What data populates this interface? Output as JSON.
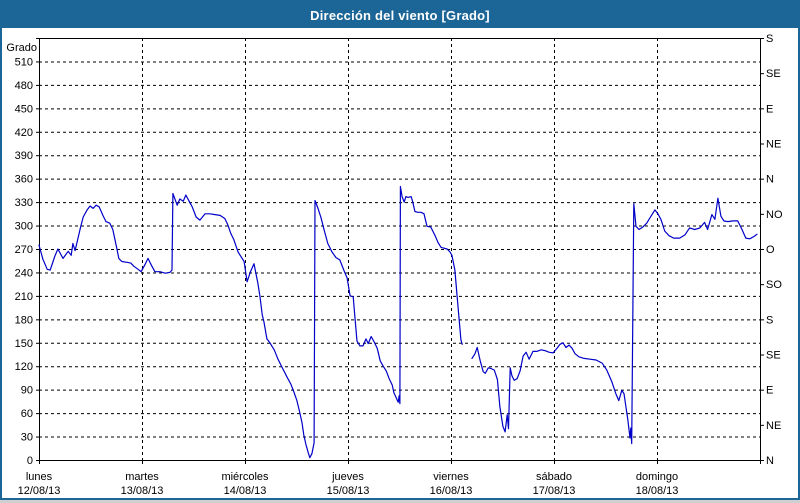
{
  "window": {
    "title": "Dirección del viento [Grado]"
  },
  "colors": {
    "titlebar_bg": "#1c6697",
    "frame_border": "#1c6697",
    "plot_border": "#000000",
    "grid": "#000000",
    "text": "#000000",
    "line": "#0000c8",
    "background": "#ffffff"
  },
  "chart_data": {
    "type": "line",
    "title": "Dirección del viento [Grado]",
    "grid": "dashed",
    "legend": "none",
    "y_axis_left": {
      "label": "Grado",
      "min": 0,
      "max": 540,
      "tick_step": 30,
      "tick_labels": [
        "0",
        "30",
        "60",
        "90",
        "120",
        "150",
        "180",
        "210",
        "240",
        "270",
        "300",
        "330",
        "360",
        "390",
        "420",
        "450",
        "480",
        "510"
      ]
    },
    "y_axis_right": {
      "labels": [
        {
          "value": 540,
          "text": "S"
        },
        {
          "value": 495,
          "text": "SE"
        },
        {
          "value": 450,
          "text": "E"
        },
        {
          "value": 405,
          "text": "NE"
        },
        {
          "value": 360,
          "text": "N"
        },
        {
          "value": 315,
          "text": "NO"
        },
        {
          "value": 270,
          "text": "O"
        },
        {
          "value": 225,
          "text": "SO"
        },
        {
          "value": 180,
          "text": "S"
        },
        {
          "value": 135,
          "text": "SE"
        },
        {
          "value": 90,
          "text": "E"
        },
        {
          "value": 45,
          "text": "NE"
        },
        {
          "value": 0,
          "text": "N"
        }
      ]
    },
    "x_axis": {
      "unit": "hours",
      "min": 0,
      "max": 168,
      "day_span_hours": 24,
      "days": [
        {
          "name": "lunes",
          "date": "12/08/13"
        },
        {
          "name": "martes",
          "date": "13/08/13"
        },
        {
          "name": "miércoles",
          "date": "14/08/13"
        },
        {
          "name": "jueves",
          "date": "15/08/13"
        },
        {
          "name": "viernes",
          "date": "16/08/13"
        },
        {
          "name": "sábado",
          "date": "17/08/13"
        },
        {
          "name": "domingo",
          "date": "18/08/13"
        }
      ]
    },
    "series": [
      {
        "name": "Dirección del viento",
        "color": "#0000c8",
        "points": [
          [
            0,
            275
          ],
          [
            0.9,
            257
          ],
          [
            1.9,
            244
          ],
          [
            2.6,
            243
          ],
          [
            3.7,
            261
          ],
          [
            4.4,
            270
          ],
          [
            5.6,
            258
          ],
          [
            6.8,
            267
          ],
          [
            7.5,
            262
          ],
          [
            7.9,
            277
          ],
          [
            8.4,
            268
          ],
          [
            9.6,
            296
          ],
          [
            10.3,
            311
          ],
          [
            11.2,
            320
          ],
          [
            11.9,
            325
          ],
          [
            12.6,
            322
          ],
          [
            13.3,
            326
          ],
          [
            14,
            324
          ],
          [
            14.9,
            313
          ],
          [
            15.6,
            305
          ],
          [
            16.5,
            303
          ],
          [
            17.2,
            295
          ],
          [
            18.2,
            269
          ],
          [
            18.6,
            258
          ],
          [
            19.3,
            254
          ],
          [
            20.5,
            253
          ],
          [
            21.4,
            252
          ],
          [
            22.1,
            248
          ],
          [
            23.1,
            244
          ],
          [
            23.8,
            241
          ],
          [
            24.7,
            250
          ],
          [
            25.4,
            258
          ],
          [
            26.3,
            248
          ],
          [
            27,
            241
          ],
          [
            28.2,
            241
          ],
          [
            29.4,
            239
          ],
          [
            30.5,
            240
          ],
          [
            31,
            243
          ],
          [
            31.2,
            341
          ],
          [
            32.2,
            326
          ],
          [
            32.8,
            334
          ],
          [
            33.6,
            331
          ],
          [
            34.2,
            339
          ],
          [
            35.7,
            324
          ],
          [
            36.6,
            311
          ],
          [
            37.5,
            307
          ],
          [
            38.7,
            315
          ],
          [
            39.8,
            315
          ],
          [
            41,
            314
          ],
          [
            42.2,
            313
          ],
          [
            43.3,
            309
          ],
          [
            44,
            301
          ],
          [
            44.7,
            290
          ],
          [
            45.4,
            282
          ],
          [
            46.4,
            266
          ],
          [
            47.1,
            260
          ],
          [
            47.8,
            254
          ],
          [
            48.5,
            228
          ],
          [
            49.2,
            240
          ],
          [
            50.1,
            251
          ],
          [
            51,
            226
          ],
          [
            51.5,
            209
          ],
          [
            52,
            186
          ],
          [
            52.4,
            177
          ],
          [
            53.1,
            155
          ],
          [
            53.8,
            150
          ],
          [
            54.8,
            141
          ],
          [
            55.7,
            129
          ],
          [
            56.6,
            119
          ],
          [
            57.8,
            106
          ],
          [
            58.7,
            97
          ],
          [
            59.4,
            87
          ],
          [
            60.1,
            76
          ],
          [
            60.8,
            60
          ],
          [
            61.3,
            47
          ],
          [
            61.7,
            32
          ],
          [
            62.2,
            20
          ],
          [
            62.7,
            10
          ],
          [
            63.1,
            3
          ],
          [
            63.6,
            8
          ],
          [
            64.1,
            22
          ],
          [
            64.3,
            332
          ],
          [
            65,
            322
          ],
          [
            65.7,
            310
          ],
          [
            66.4,
            295
          ],
          [
            67.3,
            277
          ],
          [
            68.3,
            266
          ],
          [
            69.2,
            259
          ],
          [
            70.1,
            256
          ],
          [
            71.1,
            242
          ],
          [
            71.8,
            233
          ],
          [
            72.5,
            210
          ],
          [
            73.2,
            209
          ],
          [
            73.6,
            183
          ],
          [
            74.1,
            152
          ],
          [
            74.8,
            146
          ],
          [
            75.5,
            146
          ],
          [
            76.2,
            155
          ],
          [
            76.7,
            149
          ],
          [
            77.4,
            158
          ],
          [
            78.1,
            151
          ],
          [
            78.8,
            143
          ],
          [
            79.5,
            127
          ],
          [
            80.2,
            120
          ],
          [
            80.9,
            114
          ],
          [
            81.6,
            104
          ],
          [
            82.3,
            96
          ],
          [
            82.7,
            86
          ],
          [
            83.2,
            80
          ],
          [
            83.7,
            74
          ],
          [
            83.9,
            82
          ],
          [
            84.1,
            72
          ],
          [
            84.2,
            350
          ],
          [
            84.6,
            337
          ],
          [
            85.1,
            330
          ],
          [
            85.5,
            337
          ],
          [
            86,
            336
          ],
          [
            86.7,
            337
          ],
          [
            87.1,
            330
          ],
          [
            87.6,
            318
          ],
          [
            88.3,
            317
          ],
          [
            89,
            317
          ],
          [
            89.7,
            315
          ],
          [
            90.4,
            299
          ],
          [
            91.3,
            298
          ],
          [
            92.3,
            287
          ],
          [
            93,
            278
          ],
          [
            93.7,
            272
          ],
          [
            94.4,
            271
          ],
          [
            95.1,
            270
          ],
          [
            95.8,
            266
          ],
          [
            96.2,
            262
          ],
          [
            96.9,
            243
          ],
          [
            97.4,
            211
          ],
          [
            97.9,
            179
          ],
          [
            98.3,
            154
          ],
          [
            98.6,
            148
          ],
          null,
          [
            100.9,
            130
          ],
          [
            101.6,
            136
          ],
          [
            102.1,
            144
          ],
          [
            102.8,
            127
          ],
          [
            103.5,
            113
          ],
          [
            104,
            111
          ],
          [
            104.7,
            118
          ],
          [
            105.4,
            117
          ],
          [
            106.1,
            115
          ],
          [
            106.8,
            103
          ],
          [
            107.4,
            68
          ],
          [
            108.1,
            43
          ],
          [
            108.6,
            36
          ],
          [
            109.1,
            58
          ],
          [
            109.4,
            40
          ],
          [
            109.8,
            118
          ],
          [
            110.2,
            108
          ],
          [
            110.7,
            102
          ],
          [
            111.4,
            104
          ],
          [
            112.1,
            114
          ],
          [
            112.8,
            133
          ],
          [
            113.5,
            138
          ],
          [
            114.2,
            129
          ],
          [
            115.1,
            139
          ],
          [
            116,
            139
          ],
          [
            117,
            141
          ],
          [
            117.9,
            140
          ],
          [
            118.8,
            138
          ],
          [
            119.8,
            137
          ],
          [
            120.7,
            143
          ],
          [
            121.4,
            148
          ],
          [
            122.1,
            150
          ],
          [
            122.8,
            144
          ],
          [
            123.5,
            147
          ],
          [
            124.2,
            143
          ],
          [
            124.9,
            136
          ],
          [
            125.8,
            132
          ],
          [
            127,
            130
          ],
          [
            128.4,
            129
          ],
          [
            129.8,
            128
          ],
          [
            131.2,
            124
          ],
          [
            132.3,
            115
          ],
          [
            133.5,
            100
          ],
          [
            134.4,
            85
          ],
          [
            135.1,
            76
          ],
          [
            135.8,
            89
          ],
          [
            136.3,
            85
          ],
          [
            136.7,
            70
          ],
          [
            137.2,
            52
          ],
          [
            137.7,
            28
          ],
          [
            137.9,
            41
          ],
          [
            138.1,
            21
          ],
          [
            138.6,
            328
          ],
          [
            139.1,
            299
          ],
          [
            139.8,
            295
          ],
          [
            140.7,
            298
          ],
          [
            141.6,
            303
          ],
          [
            142.6,
            312
          ],
          [
            143.5,
            320
          ],
          [
            144.2,
            315
          ],
          [
            144.9,
            308
          ],
          [
            145.8,
            293
          ],
          [
            146.8,
            287
          ],
          [
            147.9,
            284
          ],
          [
            149.3,
            284
          ],
          [
            150.5,
            288
          ],
          [
            151.6,
            297
          ],
          [
            152.8,
            295
          ],
          [
            154,
            297
          ],
          [
            155.1,
            304
          ],
          [
            155.8,
            295
          ],
          [
            156.8,
            314
          ],
          [
            157.5,
            308
          ],
          [
            158.2,
            335
          ],
          [
            158.9,
            312
          ],
          [
            159.6,
            306
          ],
          [
            160.5,
            305
          ],
          [
            161.7,
            306
          ],
          [
            162.8,
            306
          ],
          [
            163.8,
            295
          ],
          [
            164.7,
            284
          ],
          [
            165.6,
            283
          ],
          [
            166.6,
            286
          ],
          [
            167.3,
            289
          ]
        ]
      }
    ]
  }
}
